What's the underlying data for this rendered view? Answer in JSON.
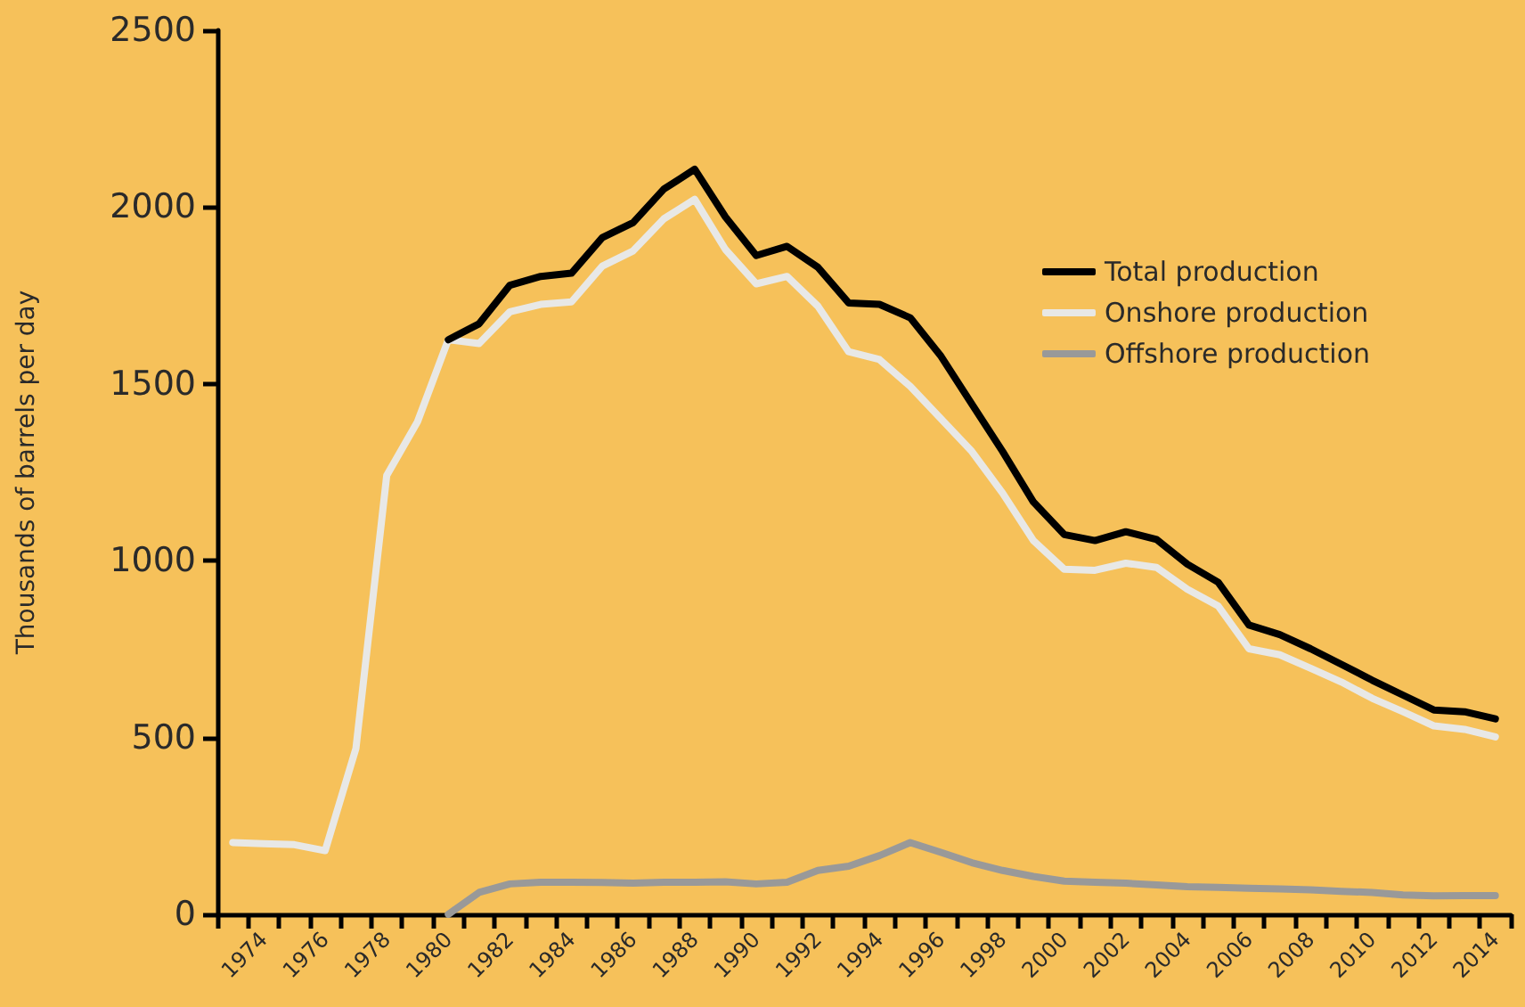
{
  "chart_data": {
    "type": "line",
    "ylabel": "Thousands of barrels per day",
    "categories": [
      null,
      "1974",
      null,
      "1976",
      null,
      "1978",
      null,
      "1980",
      null,
      "1982",
      null,
      "1984",
      null,
      "1986",
      null,
      "1988",
      null,
      "1990",
      null,
      "1992",
      null,
      "1994",
      null,
      "1996",
      null,
      "1998",
      null,
      "2000",
      null,
      "2002",
      null,
      "2004",
      null,
      "2006",
      null,
      "2008",
      null,
      "2010",
      null,
      "2012",
      null,
      "2014"
    ],
    "series": [
      {
        "name": "Total production",
        "color": "#000000",
        "values": [
          null,
          null,
          null,
          null,
          null,
          null,
          null,
          1625,
          1670,
          1779,
          1804,
          1813,
          1914,
          1956,
          2051,
          2107,
          1972,
          1863,
          1889,
          1830,
          1729,
          1725,
          1687,
          1578,
          1443,
          1309,
          1166,
          1074,
          1057,
          1082,
          1060,
          990,
          939,
          818,
          791,
          751,
          707,
          662,
          620,
          578,
          573,
          553
        ]
      },
      {
        "name": "Onshore production",
        "color": "#e8e8e6",
        "values": [
          203,
          200,
          197,
          180,
          469,
          1241,
          1393,
          1625,
          1614,
          1704,
          1725,
          1732,
          1833,
          1876,
          1967,
          2022,
          1880,
          1783,
          1804,
          1720,
          1591,
          1569,
          1493,
          1401,
          1309,
          1191,
          1057,
          976,
          973,
          993,
          981,
          919,
          872,
          751,
          734,
          696,
          657,
          611,
          573,
          533,
          523,
          502
        ]
      },
      {
        "name": "Offshore production",
        "color": "#999999",
        "values": [
          null,
          null,
          null,
          null,
          null,
          null,
          null,
          0,
          62,
          86,
          91,
          91,
          90,
          88,
          91,
          91,
          92,
          86,
          91,
          124,
          136,
          166,
          203,
          175,
          146,
          124,
          107,
          94,
          91,
          88,
          83,
          78,
          76,
          74,
          72,
          69,
          65,
          62,
          55,
          52,
          53,
          53
        ]
      }
    ],
    "ylim": [
      0,
      2500
    ],
    "yticks": [
      0,
      500,
      1000,
      1500,
      2000,
      2500
    ],
    "legend": "right",
    "marker": "none",
    "line_style": "solid"
  }
}
